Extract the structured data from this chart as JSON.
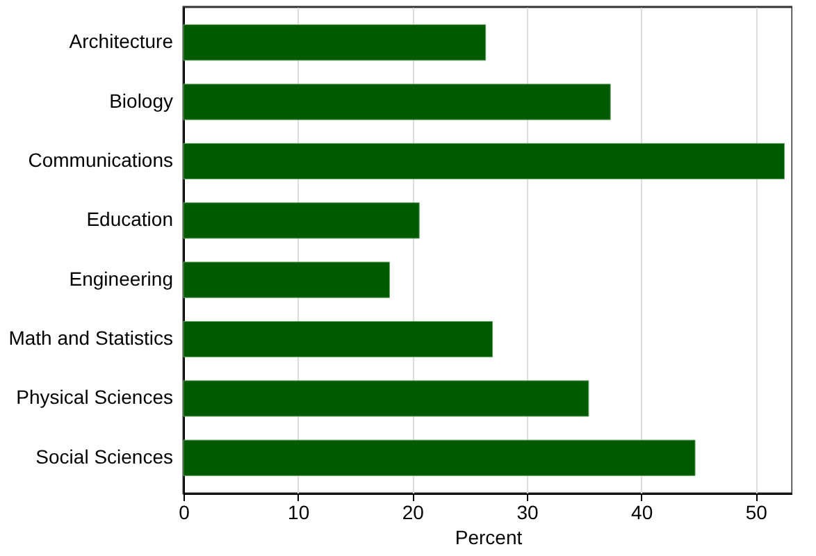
{
  "chart_data": {
    "type": "bar",
    "orientation": "horizontal",
    "xlabel": "Percent",
    "categories": [
      "Architecture",
      "Biology",
      "Communications",
      "Education",
      "Engineering",
      "Math and Statistics",
      "Physical Sciences",
      "Social Sciences"
    ],
    "values": [
      26.4,
      37.3,
      52.5,
      20.6,
      18.0,
      27.0,
      35.4,
      44.7
    ],
    "color": "#005a00",
    "xlim": [
      0,
      53.2
    ],
    "xticks": [
      0,
      10,
      20,
      30,
      40,
      50
    ],
    "grid": "x"
  }
}
